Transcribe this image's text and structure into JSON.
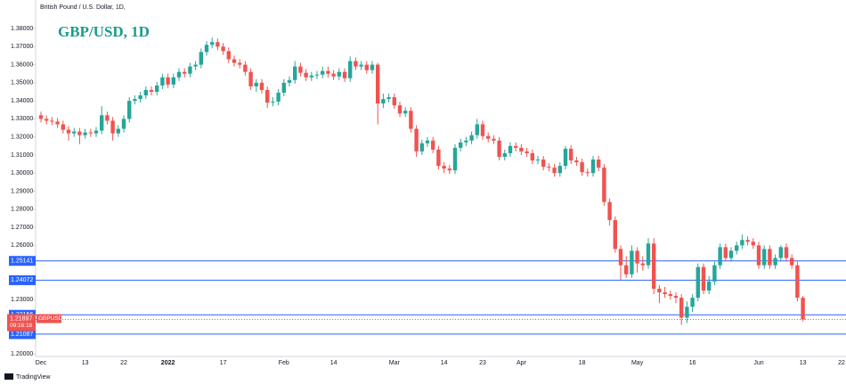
{
  "chart_data": {
    "type": "candlestick",
    "source": "British Pound / U.S. Dollar, 1D, ",
    "title": "GBP/USD, 1D",
    "footer": "TradingView",
    "symbol": "GBPUSD",
    "countdown": "09:16:18",
    "last_price": 1.21897,
    "last_price_color": "#ef5350",
    "levels": [
      1.25141,
      1.24072,
      1.22156,
      1.21087
    ],
    "level_color": "#2962ff",
    "up_color": "#26a69a",
    "down_color": "#ef5350",
    "ylim": [
      1.1985,
      1.3958
    ],
    "yticks": [
      {
        "value": 1.38,
        "label": "1.38000"
      },
      {
        "value": 1.37,
        "label": "1.37000"
      },
      {
        "value": 1.36,
        "label": "1.36000"
      },
      {
        "value": 1.35,
        "label": "1.35000"
      },
      {
        "value": 1.34,
        "label": "1.34000"
      },
      {
        "value": 1.33,
        "label": "1.33000"
      },
      {
        "value": 1.32,
        "label": "1.32000"
      },
      {
        "value": 1.31,
        "label": "1.31000"
      },
      {
        "value": 1.3,
        "label": "1.30000"
      },
      {
        "value": 1.29,
        "label": "1.29000"
      },
      {
        "value": 1.28,
        "label": "1.28000"
      },
      {
        "value": 1.27,
        "label": "1.27000"
      },
      {
        "value": 1.26,
        "label": "1.26000"
      },
      {
        "value": 1.23,
        "label": "1.23000"
      },
      {
        "value": 1.2,
        "label": "1.20000"
      }
    ],
    "categories": [
      "Dec",
      null,
      null,
      null,
      null,
      null,
      null,
      null,
      "13",
      null,
      null,
      null,
      null,
      null,
      null,
      "22",
      null,
      null,
      null,
      null,
      null,
      null,
      null,
      "2022",
      null,
      null,
      null,
      null,
      null,
      null,
      null,
      null,
      null,
      "17",
      null,
      null,
      null,
      null,
      null,
      null,
      null,
      null,
      null,
      null,
      "Feb",
      null,
      null,
      null,
      null,
      null,
      null,
      null,
      null,
      "14",
      null,
      null,
      null,
      null,
      null,
      null,
      null,
      null,
      null,
      null,
      "Mar",
      null,
      null,
      null,
      null,
      null,
      null,
      null,
      null,
      "14",
      null,
      null,
      null,
      null,
      null,
      null,
      "23",
      null,
      null,
      null,
      null,
      null,
      null,
      "Apr",
      null,
      null,
      null,
      null,
      null,
      null,
      null,
      null,
      null,
      null,
      "18",
      null,
      null,
      null,
      null,
      null,
      null,
      null,
      null,
      null,
      "May",
      null,
      null,
      null,
      null,
      null,
      null,
      null,
      null,
      null,
      "16",
      null,
      null,
      null,
      null,
      null,
      null,
      null,
      null,
      null,
      null,
      null,
      "Jun",
      null,
      null,
      null,
      null,
      null,
      null,
      null,
      "13",
      null,
      null,
      null,
      null,
      null,
      null,
      "22"
    ],
    "open": [
      1.332,
      1.33,
      1.329,
      1.3285,
      1.327,
      1.324,
      1.322,
      1.323,
      1.321,
      1.3225,
      1.322,
      1.3235,
      1.332,
      1.329,
      1.322,
      1.3245,
      1.33,
      1.34,
      1.341,
      1.343,
      1.346,
      1.345,
      1.3485,
      1.353,
      1.349,
      1.353,
      1.356,
      1.355,
      1.359,
      1.36,
      1.367,
      1.371,
      1.3725,
      1.37,
      1.3675,
      1.363,
      1.361,
      1.36,
      1.356,
      1.348,
      1.35,
      1.346,
      1.339,
      1.3395,
      1.3445,
      1.35,
      1.3515,
      1.359,
      1.3555,
      1.353,
      1.354,
      1.3545,
      1.3565,
      1.355,
      1.3535,
      1.356,
      1.3525,
      1.362,
      1.359,
      1.36,
      1.357,
      1.36,
      1.3385,
      1.341,
      1.342,
      1.3375,
      1.333,
      1.3345,
      1.3245,
      1.312,
      1.3165,
      1.318,
      1.313,
      1.304,
      1.3025,
      1.3015,
      1.314,
      1.317,
      1.318,
      1.321,
      1.327,
      1.3205,
      1.319,
      1.318,
      1.309,
      1.311,
      1.315,
      1.314,
      1.312,
      1.311,
      1.307,
      1.3075,
      1.3035,
      1.303,
      1.3,
      1.304,
      1.3135,
      1.307,
      1.306,
      1.3005,
      1.3,
      1.3075,
      1.303,
      1.284,
      1.274,
      1.258,
      1.249,
      1.244,
      1.257,
      1.25,
      1.249,
      1.261,
      1.236,
      1.234,
      1.233,
      1.232,
      1.231,
      1.22,
      1.226,
      1.231,
      1.248,
      1.235,
      1.24,
      1.249,
      1.259,
      1.253,
      1.257,
      1.26,
      1.263,
      1.262,
      1.26,
      1.249,
      1.258,
      1.249,
      1.253,
      1.259,
      1.253,
      1.249,
      1.231,
      null,
      null,
      null,
      null,
      null,
      null,
      null
    ],
    "high": [
      1.334,
      1.332,
      1.331,
      1.3305,
      1.329,
      1.326,
      1.325,
      1.325,
      1.3245,
      1.3245,
      1.3255,
      1.337,
      1.334,
      1.331,
      1.3265,
      1.332,
      1.342,
      1.343,
      1.345,
      1.348,
      1.348,
      1.3505,
      1.355,
      1.355,
      1.355,
      1.358,
      1.358,
      1.361,
      1.362,
      1.369,
      1.373,
      1.375,
      1.3745,
      1.372,
      1.3695,
      1.365,
      1.363,
      1.362,
      1.358,
      1.352,
      1.352,
      1.348,
      1.342,
      1.3465,
      1.352,
      1.3535,
      1.362,
      1.361,
      1.3575,
      1.356,
      1.3565,
      1.359,
      1.359,
      1.357,
      1.358,
      1.358,
      1.3645,
      1.364,
      1.362,
      1.362,
      1.362,
      1.361,
      1.344,
      1.344,
      1.344,
      1.3395,
      1.3365,
      1.3365,
      1.3265,
      1.3185,
      1.32,
      1.32,
      1.315,
      1.306,
      1.3045,
      1.316,
      1.319,
      1.32,
      1.323,
      1.33,
      1.329,
      1.3225,
      1.321,
      1.32,
      1.313,
      1.317,
      1.317,
      1.316,
      1.314,
      1.313,
      1.3095,
      1.3095,
      1.3055,
      1.305,
      1.306,
      1.315,
      1.3155,
      1.309,
      1.308,
      1.3025,
      1.3095,
      1.3095,
      1.305,
      1.286,
      1.276,
      1.26,
      1.254,
      1.26,
      1.259,
      1.254,
      1.264,
      1.264,
      1.238,
      1.237,
      1.235,
      1.234,
      1.233,
      1.229,
      1.233,
      1.25,
      1.25,
      1.243,
      1.251,
      1.261,
      1.261,
      1.259,
      1.262,
      1.266,
      1.265,
      1.264,
      1.262,
      1.26,
      1.26,
      1.255,
      1.26,
      1.261,
      1.255,
      1.251,
      1.232,
      null,
      null,
      null,
      null,
      null,
      null,
      null
    ],
    "low": [
      1.328,
      1.327,
      1.3265,
      1.325,
      1.322,
      1.318,
      1.32,
      1.316,
      1.319,
      1.32,
      1.32,
      1.3215,
      1.327,
      1.318,
      1.32,
      1.3225,
      1.328,
      1.338,
      1.339,
      1.341,
      1.343,
      1.343,
      1.3465,
      1.347,
      1.347,
      1.351,
      1.353,
      1.353,
      1.357,
      1.358,
      1.365,
      1.369,
      1.368,
      1.3655,
      1.361,
      1.359,
      1.358,
      1.354,
      1.346,
      1.345,
      1.344,
      1.336,
      1.337,
      1.3375,
      1.3425,
      1.348,
      1.3495,
      1.3535,
      1.351,
      1.351,
      1.352,
      1.3525,
      1.353,
      1.3515,
      1.3515,
      1.3505,
      1.3505,
      1.357,
      1.357,
      1.355,
      1.355,
      1.327,
      1.336,
      1.339,
      1.3355,
      1.331,
      1.331,
      1.3225,
      1.309,
      1.31,
      1.3145,
      1.311,
      1.302,
      1.3,
      1.2995,
      1.2995,
      1.312,
      1.315,
      1.316,
      1.319,
      1.3185,
      1.317,
      1.316,
      1.307,
      1.307,
      1.309,
      1.312,
      1.31,
      1.309,
      1.305,
      1.305,
      1.3015,
      1.301,
      1.298,
      1.298,
      1.302,
      1.305,
      1.304,
      1.2985,
      1.298,
      1.298,
      1.301,
      1.282,
      1.271,
      1.256,
      1.241,
      1.242,
      1.242,
      1.245,
      1.246,
      1.247,
      1.233,
      1.228,
      1.231,
      1.23,
      1.228,
      1.216,
      1.217,
      1.223,
      1.229,
      1.233,
      1.233,
      1.238,
      1.247,
      1.251,
      1.251,
      1.255,
      1.258,
      1.26,
      1.258,
      1.247,
      1.247,
      1.247,
      1.247,
      1.251,
      1.251,
      1.247,
      1.229,
      1.218,
      null,
      null,
      null,
      null,
      null,
      null,
      null
    ],
    "close": [
      1.33,
      1.329,
      1.3285,
      1.327,
      1.324,
      1.322,
      1.323,
      1.321,
      1.3225,
      1.322,
      1.3235,
      1.332,
      1.329,
      1.322,
      1.3245,
      1.33,
      1.34,
      1.341,
      1.343,
      1.346,
      1.345,
      1.3485,
      1.353,
      1.349,
      1.353,
      1.356,
      1.355,
      1.359,
      1.36,
      1.367,
      1.371,
      1.3725,
      1.37,
      1.3675,
      1.363,
      1.361,
      1.36,
      1.356,
      1.348,
      1.35,
      1.346,
      1.339,
      1.3395,
      1.3445,
      1.35,
      1.3515,
      1.359,
      1.3555,
      1.353,
      1.354,
      1.3545,
      1.3565,
      1.355,
      1.3535,
      1.356,
      1.3525,
      1.362,
      1.359,
      1.36,
      1.357,
      1.36,
      1.3385,
      1.341,
      1.342,
      1.3375,
      1.333,
      1.3345,
      1.3245,
      1.312,
      1.3165,
      1.318,
      1.313,
      1.304,
      1.3025,
      1.3015,
      1.314,
      1.317,
      1.318,
      1.321,
      1.327,
      1.3205,
      1.319,
      1.318,
      1.309,
      1.311,
      1.315,
      1.314,
      1.312,
      1.311,
      1.307,
      1.3075,
      1.3035,
      1.303,
      1.3,
      1.304,
      1.3135,
      1.307,
      1.306,
      1.3005,
      1.3,
      1.3075,
      1.303,
      1.284,
      1.274,
      1.258,
      1.249,
      1.244,
      1.257,
      1.25,
      1.249,
      1.261,
      1.236,
      1.234,
      1.233,
      1.232,
      1.231,
      1.22,
      1.226,
      1.231,
      1.248,
      1.235,
      1.24,
      1.249,
      1.259,
      1.253,
      1.257,
      1.26,
      1.263,
      1.262,
      1.26,
      1.249,
      1.258,
      1.249,
      1.253,
      1.259,
      1.253,
      1.249,
      1.231,
      1.219,
      null,
      null,
      null,
      null,
      null,
      null,
      null
    ]
  }
}
